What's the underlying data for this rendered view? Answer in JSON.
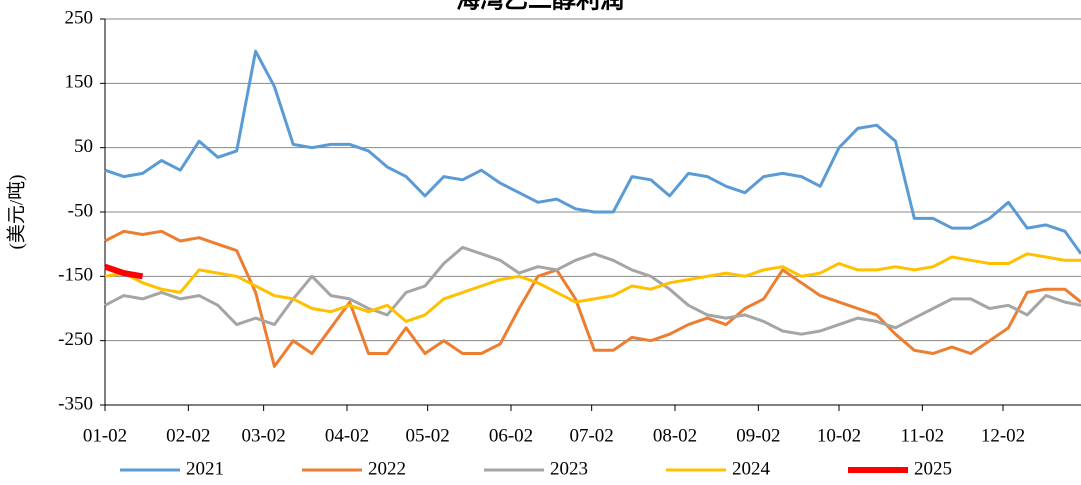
{
  "chart_data": {
    "type": "line",
    "title": "海湾乙二醇利润",
    "y_label": "(美元/吨)",
    "x": [
      0,
      7,
      14,
      21,
      28,
      35,
      42,
      49,
      56,
      63,
      70,
      77,
      84,
      91,
      98,
      105,
      112,
      119,
      126,
      133,
      140,
      147,
      154,
      161,
      168,
      175,
      182,
      189,
      196,
      203,
      210,
      217,
      224,
      231,
      238,
      245,
      252,
      259,
      266,
      273,
      280,
      287,
      294,
      301,
      308,
      315,
      322,
      329,
      336,
      343,
      350,
      357,
      363
    ],
    "xlim": [
      0,
      363
    ],
    "xticks": [
      {
        "value": 0,
        "label": "01-02"
      },
      {
        "value": 31,
        "label": "02-02"
      },
      {
        "value": 59,
        "label": "03-02"
      },
      {
        "value": 90,
        "label": "04-02"
      },
      {
        "value": 120,
        "label": "05-02"
      },
      {
        "value": 151,
        "label": "06-02"
      },
      {
        "value": 181,
        "label": "07-02"
      },
      {
        "value": 212,
        "label": "08-02"
      },
      {
        "value": 243,
        "label": "09-02"
      },
      {
        "value": 273,
        "label": "10-02"
      },
      {
        "value": 304,
        "label": "11-02"
      },
      {
        "value": 334,
        "label": "12-02"
      }
    ],
    "ylim": [
      -350,
      250
    ],
    "yticks": [
      -350,
      -250,
      -150,
      -50,
      50,
      150,
      250
    ],
    "grid": true,
    "legend": "bottom",
    "series": [
      {
        "name": "2021",
        "color": "#5b9bd5",
        "width": 3,
        "values": [
          15,
          5,
          10,
          30,
          15,
          60,
          35,
          45,
          200,
          145,
          55,
          50,
          55,
          55,
          45,
          20,
          5,
          -25,
          5,
          0,
          15,
          -5,
          -20,
          -35,
          -30,
          -45,
          -50,
          -50,
          5,
          0,
          -25,
          10,
          5,
          -10,
          -20,
          5,
          10,
          5,
          -10,
          50,
          80,
          85,
          60,
          -60,
          -60,
          -75,
          -75,
          -60,
          -35,
          -75,
          -70,
          -80,
          -115
        ]
      },
      {
        "name": "2022",
        "color": "#ed7d31",
        "width": 3,
        "values": [
          -95,
          -80,
          -85,
          -80,
          -95,
          -90,
          -100,
          -110,
          -175,
          -290,
          -250,
          -270,
          -230,
          -190,
          -270,
          -270,
          -230,
          -270,
          -250,
          -270,
          -270,
          -255,
          -200,
          -150,
          -140,
          -185,
          -265,
          -265,
          -245,
          -250,
          -240,
          -225,
          -215,
          -225,
          -200,
          -185,
          -140,
          -160,
          -180,
          -190,
          -200,
          -210,
          -240,
          -265,
          -270,
          -260,
          -270,
          -250,
          -230,
          -175,
          -170,
          -170,
          -190
        ]
      },
      {
        "name": "2023",
        "color": "#a5a5a5",
        "width": 3,
        "values": [
          -195,
          -180,
          -185,
          -175,
          -185,
          -180,
          -195,
          -225,
          -215,
          -225,
          -185,
          -150,
          -180,
          -185,
          -200,
          -210,
          -175,
          -165,
          -130,
          -105,
          -115,
          -125,
          -145,
          -135,
          -140,
          -125,
          -115,
          -125,
          -140,
          -150,
          -170,
          -195,
          -210,
          -215,
          -210,
          -220,
          -235,
          -240,
          -235,
          -225,
          -215,
          -220,
          -230,
          -215,
          -200,
          -185,
          -185,
          -200,
          -195,
          -210,
          -180,
          -190,
          -195
        ]
      },
      {
        "name": "2024",
        "color": "#ffc000",
        "width": 3,
        "values": [
          -150,
          -145,
          -160,
          -170,
          -175,
          -140,
          -145,
          -150,
          -165,
          -180,
          -185,
          -200,
          -205,
          -195,
          -205,
          -195,
          -220,
          -210,
          -185,
          -175,
          -165,
          -155,
          -150,
          -160,
          -175,
          -190,
          -185,
          -180,
          -165,
          -170,
          -160,
          -155,
          -150,
          -145,
          -150,
          -140,
          -135,
          -150,
          -145,
          -130,
          -140,
          -140,
          -135,
          -140,
          -135,
          -120,
          -125,
          -130,
          -130,
          -115,
          -120,
          -125,
          -125
        ]
      },
      {
        "name": "2025",
        "color": "#ff0000",
        "width": 6,
        "values": [
          -135,
          -145,
          -150,
          null,
          null,
          null,
          null,
          null,
          null,
          null,
          null,
          null,
          null,
          null,
          null,
          null,
          null,
          null,
          null,
          null,
          null,
          null,
          null,
          null,
          null,
          null,
          null,
          null,
          null,
          null,
          null,
          null,
          null,
          null,
          null,
          null,
          null,
          null,
          null,
          null,
          null,
          null,
          null,
          null,
          null,
          null,
          null,
          null,
          null,
          null,
          null,
          null,
          null
        ]
      }
    ]
  }
}
